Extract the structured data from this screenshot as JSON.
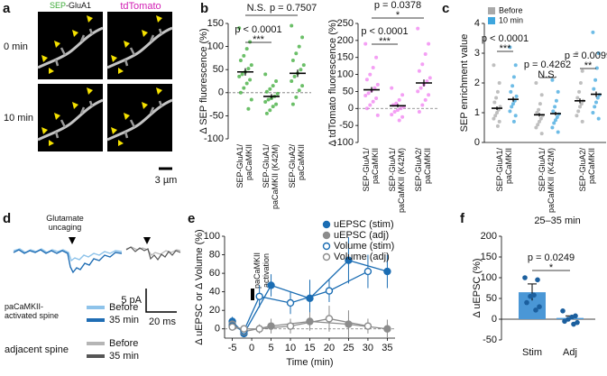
{
  "panel_a": {
    "label": "a",
    "channel_1_parts": [
      "SEP",
      "-GluA1"
    ],
    "channel_2": "tdTomato",
    "rows": [
      "0 min",
      "10 min"
    ],
    "scale_bar": "3 µm"
  },
  "panel_d": {
    "label": "d",
    "stimulus": "Glutamate\nuncaging",
    "scale_y": "5 pA",
    "scale_x": "20 ms",
    "legend": [
      {
        "title": "paCaMKII-\nactivated spine",
        "items": [
          "Before",
          "35 min"
        ]
      },
      {
        "title": "adjacent spine",
        "items": [
          "Before",
          "35 min"
        ]
      }
    ]
  },
  "chart_data": [
    {
      "type": "dot",
      "label": "b",
      "ylabel": "Δ SEP fluorescence (%)",
      "categories": [
        "SEP-GluA1/\npaCaMKII",
        "SEP-GluA1/\npaCaMKII (K42M)",
        "SEP-GluA2/\npaCaMKII"
      ],
      "color": "#3aa935",
      "points": [
        [
          140,
          110,
          95,
          80,
          70,
          60,
          52,
          45,
          40,
          35,
          28,
          20,
          10,
          0,
          -15,
          -35
        ],
        [
          40,
          25,
          15,
          8,
          2,
          -2,
          -8,
          -12,
          -15,
          -20,
          -25,
          -30,
          -38,
          -45
        ],
        [
          145,
          120,
          100,
          85,
          70,
          60,
          50,
          42,
          35,
          25,
          15,
          5,
          -10,
          -25
        ]
      ],
      "means": [
        45,
        -8,
        42
      ],
      "errors": [
        8,
        5,
        8
      ],
      "ylim": [
        -100,
        150
      ],
      "yticks": [
        -100,
        -50,
        0,
        50,
        100,
        150
      ],
      "zero_line": "dashed",
      "annotations": [
        {
          "pair": [
            0,
            2
          ],
          "mark": "N.S.",
          "p": "p = 0.7507",
          "same_line": true
        },
        {
          "pair": [
            0,
            1
          ],
          "mark": "***",
          "p": "p < 0.0001"
        }
      ]
    },
    {
      "type": "dot",
      "ylabel": "Δ tdTomato fluorescence (%)",
      "categories": [
        "SEP-GluA1/\npaCaMKII",
        "SEP-GluA1/\npaCaMKII (K42M)",
        "SEP-GluA2/\npaCaMKII"
      ],
      "color": "#f07ff0",
      "points": [
        [
          190,
          150,
          120,
          100,
          85,
          70,
          60,
          52,
          45,
          38,
          30,
          20,
          10,
          0,
          -20
        ],
        [
          60,
          40,
          25,
          15,
          10,
          5,
          0,
          -5,
          -10,
          -18,
          -25,
          -35
        ],
        [
          235,
          190,
          160,
          130,
          110,
          90,
          80,
          70,
          60,
          50,
          40,
          25,
          10,
          -10
        ]
      ],
      "means": [
        55,
        8,
        75
      ],
      "errors": [
        8,
        5,
        10
      ],
      "ylim": [
        -100,
        250
      ],
      "yticks": [
        -100,
        -50,
        0,
        50,
        100,
        150,
        200,
        250
      ],
      "zero_line": "dashed",
      "annotations": [
        {
          "pair": [
            0,
            2
          ],
          "mark": "*",
          "p": "p = 0.0378"
        },
        {
          "pair": [
            0,
            1
          ],
          "mark": "***",
          "p": "p < 0.0001"
        }
      ]
    },
    {
      "type": "paired-dot",
      "label": "c",
      "ylabel": "SEP enrichment value",
      "categories": [
        "SEP-GluA1/\npaCaMKII",
        "SEP-GluA1/\npaCaMKII (K42M)",
        "SEP-GluA2/\npaCaMKII"
      ],
      "series": [
        {
          "name": "Before",
          "color": "#a9a9a9",
          "points": [
            [
              2.6,
              2.0,
              1.7,
              1.5,
              1.35,
              1.2,
              1.1,
              1.0,
              0.9,
              0.8,
              0.7,
              0.55
            ],
            [
              2.0,
              1.6,
              1.3,
              1.1,
              1.0,
              0.9,
              0.8,
              0.7,
              0.6,
              0.5,
              0.3
            ],
            [
              3.0,
              2.4,
              2.0,
              1.7,
              1.5,
              1.4,
              1.3,
              1.2,
              1.05,
              0.9,
              0.7
            ]
          ],
          "means": [
            1.15,
            0.93,
            1.4
          ],
          "errors": [
            0.06,
            0.06,
            0.08
          ]
        },
        {
          "name": "10 min",
          "color": "#3ea6de",
          "points": [
            [
              3.2,
              2.6,
              2.2,
              1.9,
              1.7,
              1.55,
              1.4,
              1.3,
              1.2,
              1.05,
              0.9,
              0.7
            ],
            [
              2.1,
              1.7,
              1.4,
              1.2,
              1.05,
              0.95,
              0.85,
              0.75,
              0.65,
              0.5,
              0.35
            ],
            [
              3.7,
              3.0,
              2.5,
              2.1,
              1.8,
              1.6,
              1.5,
              1.35,
              1.2,
              1.0,
              0.8
            ]
          ],
          "means": [
            1.45,
            0.97,
            1.62
          ],
          "errors": [
            0.08,
            0.06,
            0.09
          ]
        }
      ],
      "ylim": [
        0,
        4
      ],
      "yticks": [
        0,
        1,
        2,
        3,
        4
      ],
      "legend": "top-left",
      "annotations": [
        {
          "category": 0,
          "mark": "***",
          "p": "p < 0.0001"
        },
        {
          "category": 1,
          "mark": "N.S.",
          "p": "p = 0.4262"
        },
        {
          "category": 2,
          "mark": "**",
          "p": "p = 0.0099"
        }
      ]
    },
    {
      "type": "line",
      "label": "e",
      "ylabel": "Δ uEPSC or Δ Volume (%)",
      "xlabel": "Time (min)",
      "annotation": "paCaMKII\nactivation",
      "series": [
        {
          "name": "uEPSC (stim)",
          "color": "#1b6db3",
          "marker": "filled",
          "x": [
            -5,
            -2,
            5,
            15,
            25,
            35
          ],
          "values": [
            8,
            -5,
            47,
            33,
            74,
            62
          ],
          "errors": [
            5,
            3,
            12,
            20,
            25,
            18
          ]
        },
        {
          "name": "uEPSC (adj)",
          "color": "#8c8c8c",
          "marker": "filled",
          "x": [
            -5,
            -2,
            5,
            15,
            25,
            35
          ],
          "values": [
            5,
            -3,
            3,
            8,
            5,
            0
          ],
          "errors": [
            3,
            3,
            8,
            10,
            15,
            10
          ]
        },
        {
          "name": "Volume (stim)",
          "color": "#1b6db3",
          "marker": "open",
          "x": [
            -5,
            -2,
            2,
            10,
            20,
            30
          ],
          "values": [
            3,
            -2,
            35,
            28,
            41,
            62
          ],
          "errors": [
            4,
            3,
            12,
            12,
            12,
            18
          ]
        },
        {
          "name": "Volume (adj)",
          "color": "#8c8c8c",
          "marker": "open",
          "x": [
            -5,
            -2,
            2,
            10,
            20,
            30
          ],
          "values": [
            2,
            0,
            0,
            3,
            11,
            3
          ],
          "errors": [
            3,
            2,
            5,
            8,
            14,
            8
          ]
        }
      ],
      "xlim": [
        -7,
        37
      ],
      "xticks": [
        -5,
        0,
        5,
        10,
        15,
        20,
        25,
        30,
        35
      ],
      "ylim": [
        -10,
        100
      ],
      "yticks": [
        0,
        20,
        40,
        60,
        80,
        100
      ],
      "zero_line": "dashed",
      "legend": "top-right"
    },
    {
      "type": "bar",
      "label": "f",
      "title": "25–35 min",
      "ylabel": "Δ uEPSC (%)",
      "categories": [
        "Stim",
        "Adj"
      ],
      "values": [
        65,
        3
      ],
      "errors": [
        20,
        5
      ],
      "points": [
        [
          100,
          95,
          58,
          55,
          40,
          30,
          22
        ],
        [
          20,
          8,
          5,
          0,
          -5,
          -8,
          -12
        ]
      ],
      "color": "#4a97d6",
      "point_color": "#1b5f9e",
      "ylim": [
        -50,
        200
      ],
      "yticks": [
        -50,
        0,
        50,
        100,
        150,
        200
      ],
      "zero_line": "solid",
      "annotations": [
        {
          "pair": [
            0,
            1
          ],
          "mark": "*",
          "p": "p = 0.0249"
        }
      ]
    }
  ]
}
